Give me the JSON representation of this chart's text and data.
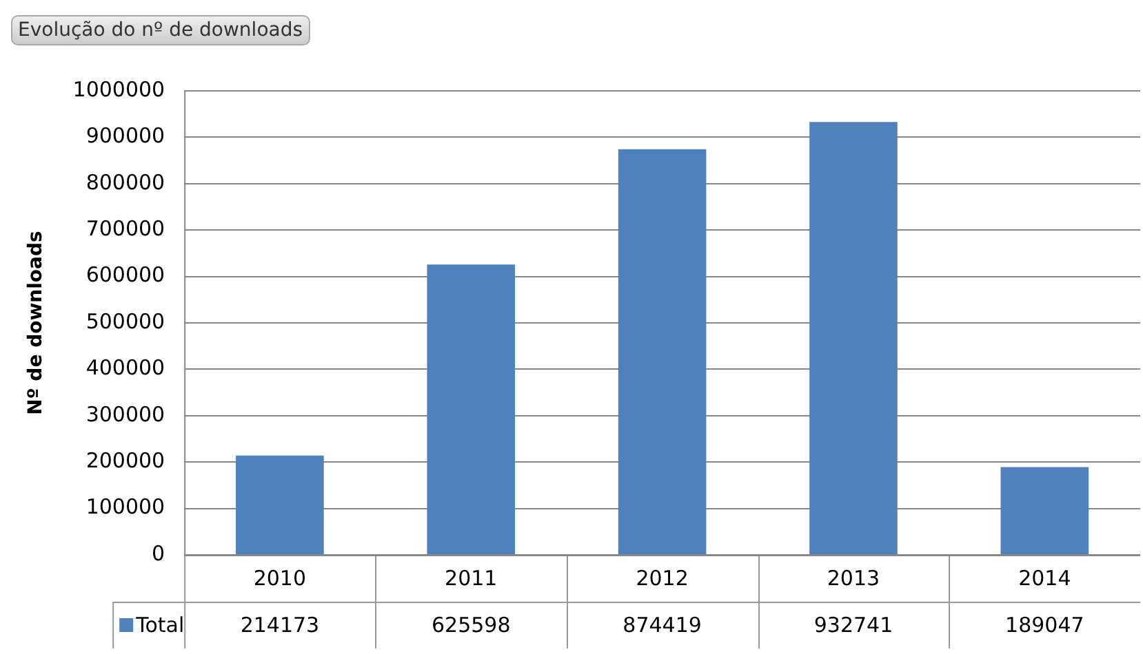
{
  "chart_data": {
    "type": "bar",
    "title": "Evolução do nº de downloads",
    "ylabel": "Nº de downloads",
    "categories": [
      "2010",
      "2011",
      "2012",
      "2013",
      "2014"
    ],
    "series": [
      {
        "name": "Total",
        "color": "#4f81bd",
        "values": [
          214173,
          625598,
          874419,
          932741,
          189047
        ]
      }
    ],
    "ylim": [
      0,
      1000000
    ],
    "yticks": [
      0,
      100000,
      200000,
      300000,
      400000,
      500000,
      600000,
      700000,
      800000,
      900000,
      1000000
    ],
    "grid": "y",
    "legend": "bottom",
    "data_labels": true
  }
}
